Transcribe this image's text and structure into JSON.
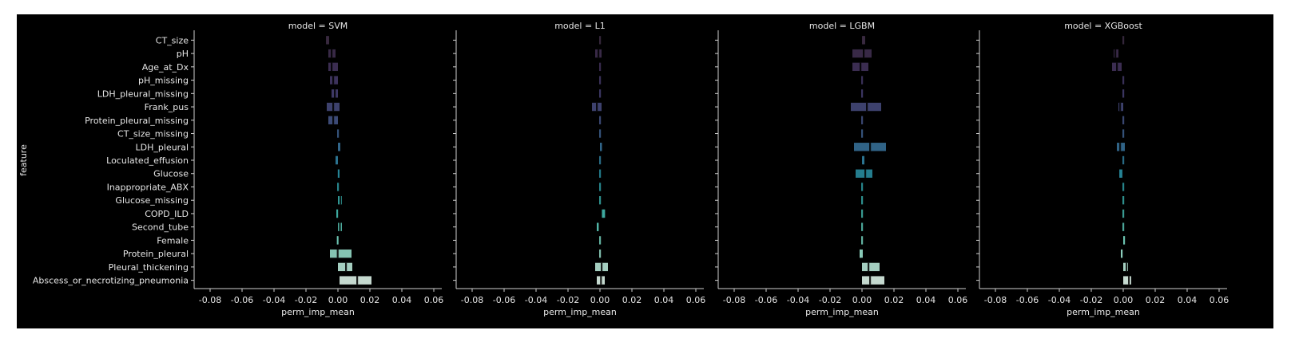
{
  "chart_data": {
    "type": "bar",
    "orientation": "horizontal",
    "facet_by": "model",
    "facet_title_prefix": "model = ",
    "xlabel": "perm_imp_mean",
    "ylabel": "feature",
    "xlim": [
      -0.09,
      0.065
    ],
    "xticks": [
      -0.08,
      -0.06,
      -0.04,
      -0.02,
      0.0,
      0.02,
      0.04,
      0.06
    ],
    "xtick_labels": [
      "-0.08",
      "-0.06",
      "-0.04",
      "-0.02",
      "0.00",
      "0.02",
      "0.04",
      "0.06"
    ],
    "grid": false,
    "background": "#000000",
    "features": [
      "CT_size",
      "pH",
      "Age_at_Dx",
      "pH_missing",
      "LDH_pleural_missing",
      "Frank_pus",
      "Protein_pleural_missing",
      "CT_size_missing",
      "LDH_pleural",
      "Loculated_effusion",
      "Glucose",
      "Inappropriate_ABX",
      "Glucose_missing",
      "COPD_ILD",
      "Second_tube",
      "Female",
      "Protein_pleural",
      "Pleural_thickening",
      "Abscess_or_necrotizing_pneumonia"
    ],
    "feature_colors": [
      "#3a2a40",
      "#3b2b4a",
      "#3e2f55",
      "#3f3560",
      "#403b6a",
      "#404473",
      "#3f4e7c",
      "#3a5a85",
      "#33688d",
      "#2c7592",
      "#268496",
      "#2a9198",
      "#339e9b",
      "#3eaaa0",
      "#52b6a7",
      "#6cc3b0",
      "#8ccfbc",
      "#add9ca",
      "#d0e5da"
    ],
    "panels": [
      {
        "model": "SVM",
        "values": [
          -0.007,
          -0.004,
          -0.004,
          -0.003,
          -0.002,
          -0.003,
          -0.003,
          0.0,
          0.0008,
          -0.0008,
          0.0004,
          0.0,
          0.0015,
          -0.0005,
          0.0012,
          -0.0002,
          -0.0002,
          0.005,
          0.012
        ],
        "ci": [
          [
            -0.007,
            -0.0055
          ],
          [
            -0.006,
            -0.0015
          ],
          [
            -0.006,
            0.0
          ],
          [
            -0.005,
            0.0
          ],
          [
            -0.004,
            0.0
          ],
          [
            -0.007,
            0.001
          ],
          [
            -0.006,
            0.0
          ],
          [
            0.0,
            0.0
          ],
          [
            0.0,
            0.0015
          ],
          [
            -0.0015,
            0.0
          ],
          [
            0.0,
            0.001
          ],
          [
            0.0,
            0.0
          ],
          [
            0.0,
            0.0025
          ],
          [
            -0.001,
            0.0
          ],
          [
            0.0,
            0.0025
          ],
          [
            -0.0005,
            0.0
          ],
          [
            -0.005,
            0.0085
          ],
          [
            0.0,
            0.009
          ],
          [
            0.001,
            0.021
          ]
        ]
      },
      {
        "model": "L1",
        "values": [
          0.0,
          -0.001,
          0.0,
          0.0,
          0.0,
          -0.002,
          0.0,
          0.0,
          0.0006,
          0.0,
          0.0,
          0.0,
          0.0,
          0.0022,
          -0.0015,
          0.0,
          0.0,
          0.001,
          0.0006
        ],
        "ci": [
          [
            0.0,
            0.0
          ],
          [
            -0.003,
            0.001
          ],
          [
            0.0,
            0.0
          ],
          [
            0.0,
            0.0
          ],
          [
            0.0,
            0.0
          ],
          [
            -0.005,
            0.001
          ],
          [
            0.0,
            0.0
          ],
          [
            0.0,
            0.0
          ],
          [
            0.0,
            0.0012
          ],
          [
            0.0,
            0.0
          ],
          [
            0.0,
            0.0
          ],
          [
            0.0,
            0.0
          ],
          [
            0.0,
            0.0
          ],
          [
            0.0012,
            0.0032
          ],
          [
            -0.002,
            -0.0008
          ],
          [
            0.0,
            0.0
          ],
          [
            0.0,
            0.0
          ],
          [
            -0.003,
            0.005
          ],
          [
            -0.002,
            0.003
          ]
        ]
      },
      {
        "model": "LGBM",
        "values": [
          0.001,
          0.001,
          -0.001,
          0.0,
          0.0,
          0.003,
          0.0,
          0.0,
          0.005,
          0.0009,
          0.002,
          0.0,
          0.0,
          0.0,
          0.0,
          0.0,
          -0.0009,
          0.004,
          0.005
        ],
        "ci": [
          [
            0.0,
            0.002
          ],
          [
            -0.006,
            0.006
          ],
          [
            -0.006,
            0.004
          ],
          [
            0.0,
            0.0
          ],
          [
            0.0,
            0.0
          ],
          [
            -0.007,
            0.012
          ],
          [
            0.0,
            0.0
          ],
          [
            0.0,
            0.0
          ],
          [
            -0.005,
            0.015
          ],
          [
            0.0,
            0.0015
          ],
          [
            -0.004,
            0.0065
          ],
          [
            0.0,
            0.0
          ],
          [
            0.0,
            0.0
          ],
          [
            0.0,
            0.0
          ],
          [
            0.0,
            0.0
          ],
          [
            0.0,
            0.0
          ],
          [
            -0.0015,
            0.0005
          ],
          [
            0.0,
            0.011
          ],
          [
            0.0,
            0.014
          ]
        ]
      },
      {
        "model": "XGBoost",
        "values": [
          0.0,
          -0.005,
          -0.004,
          0.0,
          0.0,
          -0.002,
          0.0,
          0.0,
          -0.002,
          0.0,
          -0.002,
          0.0,
          0.0,
          0.0,
          0.0,
          0.0005,
          -0.001,
          0.002,
          0.0035
        ],
        "ci": [
          [
            0.0,
            0.0
          ],
          [
            -0.006,
            -0.003
          ],
          [
            -0.007,
            -0.001
          ],
          [
            0.0,
            0.0
          ],
          [
            0.0,
            0.0
          ],
          [
            -0.003,
            0.0
          ],
          [
            0.0,
            0.0
          ],
          [
            0.0,
            0.0
          ],
          [
            -0.004,
            0.001
          ],
          [
            0.0,
            0.0
          ],
          [
            -0.002,
            -0.0005
          ],
          [
            0.0,
            0.0
          ],
          [
            0.0,
            0.0
          ],
          [
            0.0,
            0.0
          ],
          [
            0.0,
            0.0
          ],
          [
            0.0,
            0.001
          ],
          [
            -0.0015,
            -0.0005
          ],
          [
            0.0,
            0.003
          ],
          [
            0.0,
            0.005
          ]
        ]
      }
    ]
  }
}
